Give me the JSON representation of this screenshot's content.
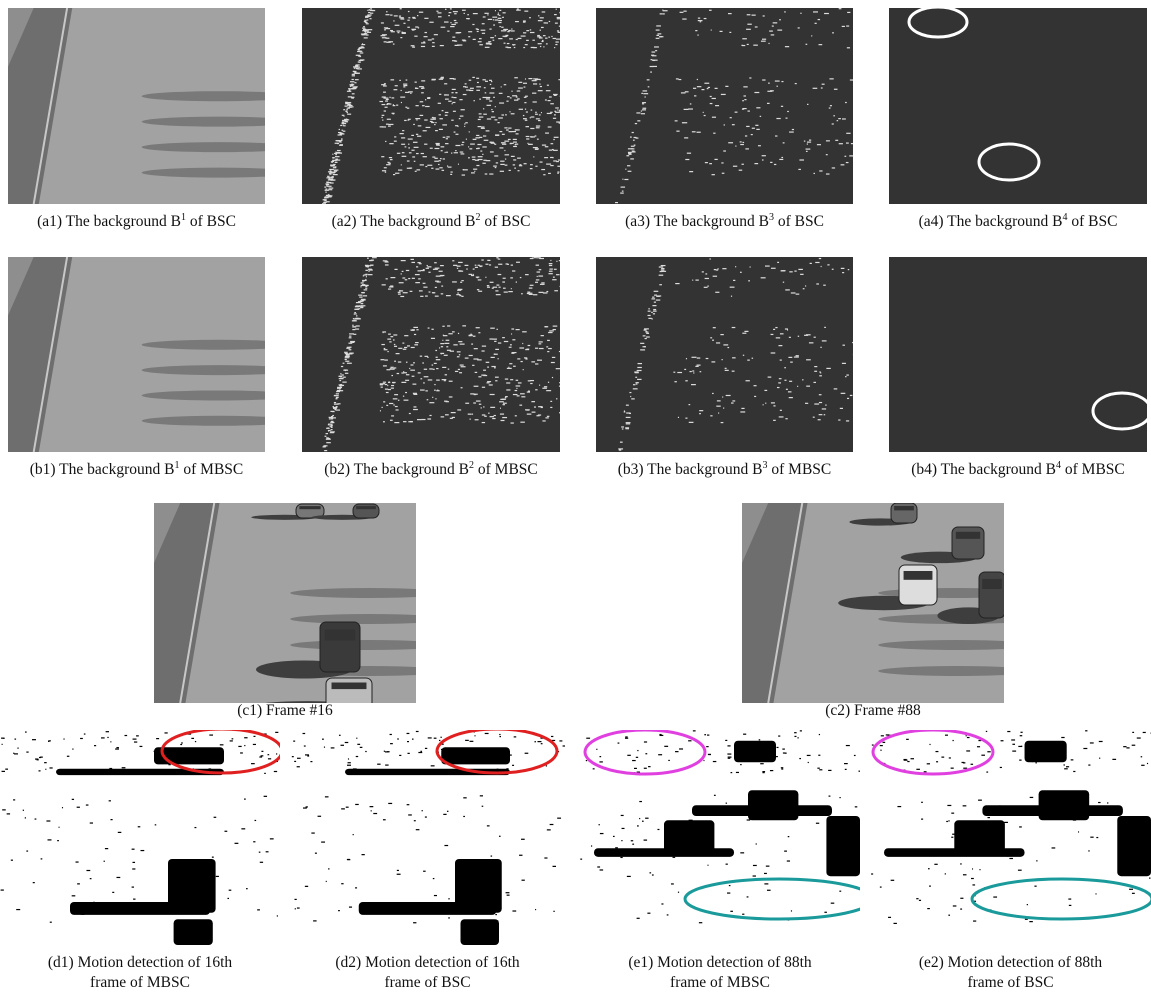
{
  "captions": {
    "a1": [
      "(a1) The background B",
      "1",
      " of BSC"
    ],
    "a2": [
      "(a2) The background B",
      "2",
      " of BSC"
    ],
    "a3": [
      "(a3) The background B",
      "3",
      " of BSC"
    ],
    "a4": [
      "(a4) The background B",
      "4",
      " of BSC"
    ],
    "b1": [
      "(b1) The background B",
      "1",
      " of MBSC"
    ],
    "b2": [
      "(b2) The background B",
      "2",
      " of MBSC"
    ],
    "b3": [
      "(b3) The background B",
      "3",
      " of MBSC"
    ],
    "b4": [
      "(b4) The background B",
      "4",
      " of MBSC"
    ],
    "c1": [
      "(c1) Frame #16"
    ],
    "c2": [
      "(c2) Frame #88"
    ],
    "d1": [
      "(d1) Motion detection of 16th",
      "frame of MBSC"
    ],
    "d2": [
      "(d2) Motion detection of 16th",
      "frame of BSC"
    ],
    "e1": [
      "(e1) Motion detection of 88th",
      "frame of MBSC"
    ],
    "e2": [
      "(e2) Motion detection of 88th",
      "frame of BSC"
    ]
  }
}
